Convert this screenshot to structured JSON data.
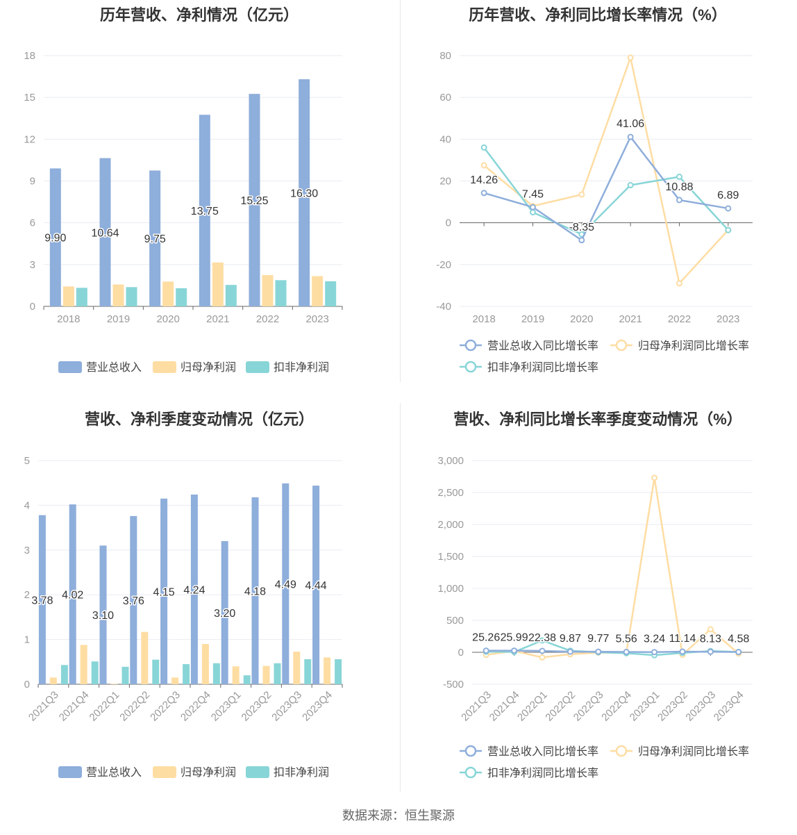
{
  "colors": {
    "revenue": "#8eaedb",
    "parent_profit": "#fedda3",
    "deducted_profit": "#88d5d7",
    "grid": "#e8ebf2",
    "axis": "#666666",
    "tick": "#999999"
  },
  "source": "数据来源：恒生聚源",
  "chart_data": [
    {
      "id": "annual-amounts",
      "type": "bar",
      "title": "历年营收、净利情况（亿元）",
      "categories": [
        "2018",
        "2019",
        "2020",
        "2021",
        "2022",
        "2023"
      ],
      "series": [
        {
          "name": "营业总收入",
          "values": [
            9.9,
            10.64,
            9.75,
            13.75,
            15.25,
            16.3
          ]
        },
        {
          "name": "归母净利润",
          "values": [
            1.43,
            1.57,
            1.78,
            3.15,
            2.25,
            2.17
          ]
        },
        {
          "name": "扣非净利润",
          "values": [
            1.33,
            1.38,
            1.3,
            1.54,
            1.88,
            1.8
          ]
        }
      ],
      "labels": [
        "9.90",
        "10.64",
        "9.75",
        "13.75",
        "15.25",
        "16.30"
      ],
      "yticks": [
        "0",
        "3",
        "6",
        "9",
        "12",
        "15",
        "18"
      ],
      "ylim": [
        0,
        18
      ],
      "grid": true,
      "legend": "bottom"
    },
    {
      "id": "annual-growth",
      "type": "line",
      "title": "历年营收、净利同比增长率情况（%）",
      "categories": [
        "2018",
        "2019",
        "2020",
        "2021",
        "2022",
        "2023"
      ],
      "series": [
        {
          "name": "营业总收入同比增长率",
          "values": [
            14.26,
            7.45,
            -8.35,
            41.06,
            10.88,
            6.89
          ]
        },
        {
          "name": "归母净利润同比增长率",
          "values": [
            27.5,
            8.0,
            13.5,
            79.0,
            -29.0,
            -3.5
          ]
        },
        {
          "name": "扣非净利润同比增长率",
          "values": [
            36.0,
            5.0,
            -5.5,
            18.0,
            22.0,
            -3.5
          ]
        }
      ],
      "labels": [
        "14.26",
        "7.45",
        "-8.35",
        "41.06",
        "10.88",
        "6.89"
      ],
      "yticks": [
        "-40",
        "-20",
        "0",
        "20",
        "40",
        "60",
        "80"
      ],
      "ylim": [
        -40,
        80
      ],
      "grid": true,
      "legend": "bottom"
    },
    {
      "id": "quarterly-amounts",
      "type": "bar",
      "title": "营收、净利季度变动情况（亿元）",
      "categories": [
        "2021Q3",
        "2021Q4",
        "2022Q1",
        "2022Q2",
        "2022Q3",
        "2022Q4",
        "2023Q1",
        "2023Q2",
        "2023Q3",
        "2023Q4"
      ],
      "series": [
        {
          "name": "营业总收入",
          "values": [
            3.78,
            4.02,
            3.1,
            3.76,
            4.15,
            4.24,
            3.2,
            4.18,
            4.49,
            4.44
          ]
        },
        {
          "name": "归母净利润",
          "values": [
            0.15,
            0.88,
            0.01,
            1.17,
            0.15,
            0.9,
            0.4,
            0.41,
            0.73,
            0.6
          ]
        },
        {
          "name": "扣非净利润",
          "values": [
            0.43,
            0.51,
            0.39,
            0.55,
            0.45,
            0.47,
            0.2,
            0.47,
            0.56,
            0.56
          ]
        }
      ],
      "labels": [
        "3.78",
        "4.02",
        "3.10",
        "3.76",
        "4.15",
        "4.24",
        "3.20",
        "4.18",
        "4.49",
        "4.44"
      ],
      "yticks": [
        "0",
        "1",
        "2",
        "3",
        "4",
        "5"
      ],
      "ylim": [
        0,
        5
      ],
      "grid": true,
      "legend": "bottom"
    },
    {
      "id": "quarterly-growth",
      "type": "line",
      "title": "营收、净利同比增长率季度变动情况（%）",
      "categories": [
        "2021Q3",
        "2021Q4",
        "2022Q1",
        "2022Q2",
        "2022Q3",
        "2022Q4",
        "2023Q1",
        "2023Q2",
        "2023Q3",
        "2023Q4"
      ],
      "series": [
        {
          "name": "营业总收入同比增长率",
          "values": [
            25.26,
            25.99,
            22.38,
            9.87,
            9.77,
            5.56,
            3.24,
            11.14,
            8.13,
            4.58
          ]
        },
        {
          "name": "归母净利润同比增长率",
          "values": [
            -40,
            20,
            -80,
            -30,
            -5,
            -10,
            2730,
            -40,
            360,
            -20
          ]
        },
        {
          "name": "扣非净利润同比增长率",
          "values": [
            10,
            5,
            185,
            25,
            0,
            -15,
            -45,
            -10,
            20,
            5
          ]
        }
      ],
      "labels": [
        "25.26",
        "25.99",
        "22.38",
        "9.87",
        "9.77",
        "5.56",
        "3.24",
        "11.14",
        "8.13",
        "4.58"
      ],
      "yticks": [
        "-500",
        "0",
        "500",
        "1,000",
        "1,500",
        "2,000",
        "2,500",
        "3,000"
      ],
      "ylim": [
        -500,
        3000
      ],
      "grid": true,
      "legend": "bottom"
    }
  ]
}
